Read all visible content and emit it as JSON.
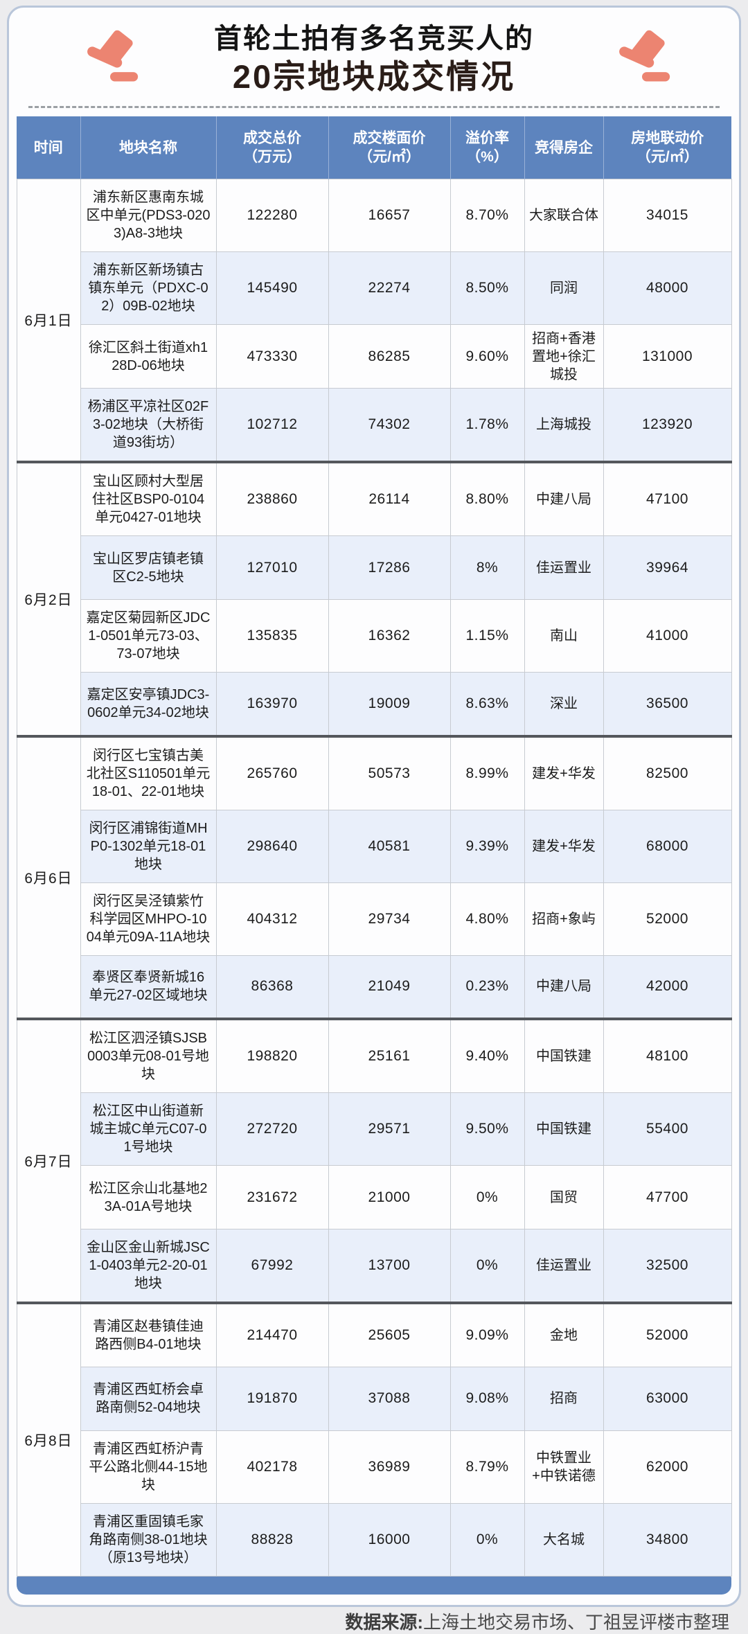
{
  "title": {
    "line1": "首轮土拍有多名竞买人的",
    "line2": "20宗地块成交情况"
  },
  "chart_data": {
    "type": "table",
    "title": "首轮土拍有多名竞买人的20宗地块成交情况",
    "columns": [
      {
        "label": "时间",
        "sub": ""
      },
      {
        "label": "地块名称",
        "sub": ""
      },
      {
        "label": "成交总价",
        "sub": "（万元）"
      },
      {
        "label": "成交楼面价",
        "sub": "（元/㎡）"
      },
      {
        "label": "溢价率",
        "sub": "（%）"
      },
      {
        "label": "竞得房企",
        "sub": ""
      },
      {
        "label": "房地联动价",
        "sub": "（元/㎡）"
      }
    ],
    "groups": [
      {
        "date": "6月1日",
        "rows": [
          {
            "name": "浦东新区惠南东城区中单元(PDS3-0203)A8-3地块",
            "total": "122280",
            "floor": "16657",
            "premium": "8.70%",
            "winner": "大家联合体",
            "linkage": "34015"
          },
          {
            "name": "浦东新区新场镇古镇东单元（PDXC-02）09B-02地块",
            "total": "145490",
            "floor": "22274",
            "premium": "8.50%",
            "winner": "同润",
            "linkage": "48000"
          },
          {
            "name": "徐汇区斜土街道xh128D-06地块",
            "total": "473330",
            "floor": "86285",
            "premium": "9.60%",
            "winner": "招商+香港置地+徐汇城投",
            "linkage": "131000"
          },
          {
            "name": "杨浦区平凉社区02F3-02地块（大桥街道93街坊）",
            "total": "102712",
            "floor": "74302",
            "premium": "1.78%",
            "winner": "上海城投",
            "linkage": "123920"
          }
        ]
      },
      {
        "date": "6月2日",
        "rows": [
          {
            "name": "宝山区顾村大型居住社区BSP0-0104单元0427-01地块",
            "total": "238860",
            "floor": "26114",
            "premium": "8.80%",
            "winner": "中建八局",
            "linkage": "47100"
          },
          {
            "name": "宝山区罗店镇老镇区C2-5地块",
            "total": "127010",
            "floor": "17286",
            "premium": "8%",
            "winner": "佳运置业",
            "linkage": "39964"
          },
          {
            "name": "嘉定区菊园新区JDC1-0501单元73-03、73-07地块",
            "total": "135835",
            "floor": "16362",
            "premium": "1.15%",
            "winner": "南山",
            "linkage": "41000"
          },
          {
            "name": "嘉定区安亭镇JDC3-0602单元34-02地块",
            "total": "163970",
            "floor": "19009",
            "premium": "8.63%",
            "winner": "深业",
            "linkage": "36500"
          }
        ]
      },
      {
        "date": "6月6日",
        "rows": [
          {
            "name": "闵行区七宝镇古美北社区S110501单元18-01、22-01地块",
            "total": "265760",
            "floor": "50573",
            "premium": "8.99%",
            "winner": "建发+华发",
            "linkage": "82500"
          },
          {
            "name": "闵行区浦锦街道MHP0-1302单元18-01地块",
            "total": "298640",
            "floor": "40581",
            "premium": "9.39%",
            "winner": "建发+华发",
            "linkage": "68000"
          },
          {
            "name": "闵行区吴泾镇紫竹科学园区MHPO-1004单元09A-11A地块",
            "total": "404312",
            "floor": "29734",
            "premium": "4.80%",
            "winner": "招商+象屿",
            "linkage": "52000"
          },
          {
            "name": "奉贤区奉贤新城16单元27-02区域地块",
            "total": "86368",
            "floor": "21049",
            "premium": "0.23%",
            "winner": "中建八局",
            "linkage": "42000"
          }
        ]
      },
      {
        "date": "6月7日",
        "rows": [
          {
            "name": "松江区泗泾镇SJSB0003单元08-01号地块",
            "total": "198820",
            "floor": "25161",
            "premium": "9.40%",
            "winner": "中国铁建",
            "linkage": "48100"
          },
          {
            "name": "松江区中山街道新城主城C单元C07-01号地块",
            "total": "272720",
            "floor": "29571",
            "premium": "9.50%",
            "winner": "中国铁建",
            "linkage": "55400"
          },
          {
            "name": "松江区佘山北基地23A-01A号地块",
            "total": "231672",
            "floor": "21000",
            "premium": "0%",
            "winner": "国贸",
            "linkage": "47700"
          },
          {
            "name": "金山区金山新城JSC1-0403单元2-20-01地块",
            "total": "67992",
            "floor": "13700",
            "premium": "0%",
            "winner": "佳运置业",
            "linkage": "32500"
          }
        ]
      },
      {
        "date": "6月8日",
        "rows": [
          {
            "name": "青浦区赵巷镇佳迪路西侧B4-01地块",
            "total": "214470",
            "floor": "25605",
            "premium": "9.09%",
            "winner": "金地",
            "linkage": "52000"
          },
          {
            "name": "青浦区西虹桥会卓路南侧52-04地块",
            "total": "191870",
            "floor": "37088",
            "premium": "9.08%",
            "winner": "招商",
            "linkage": "63000"
          },
          {
            "name": "青浦区西虹桥沪青平公路北侧44-15地块",
            "total": "402178",
            "floor": "36989",
            "premium": "8.79%",
            "winner": "中铁置业+中铁诺德",
            "linkage": "62000"
          },
          {
            "name": "青浦区重固镇毛家角路南侧38-01地块（原13号地块）",
            "total": "88828",
            "floor": "16000",
            "premium": "0%",
            "winner": "大名城",
            "linkage": "34800"
          }
        ]
      }
    ]
  },
  "footer": {
    "label": "数据来源:",
    "text": "上海土地交易市场、丁祖昱评楼市整理"
  },
  "colors": {
    "header_blue": "#5d84be",
    "row_alt": "#e9effa",
    "accent_salmon": "#ec8471"
  }
}
